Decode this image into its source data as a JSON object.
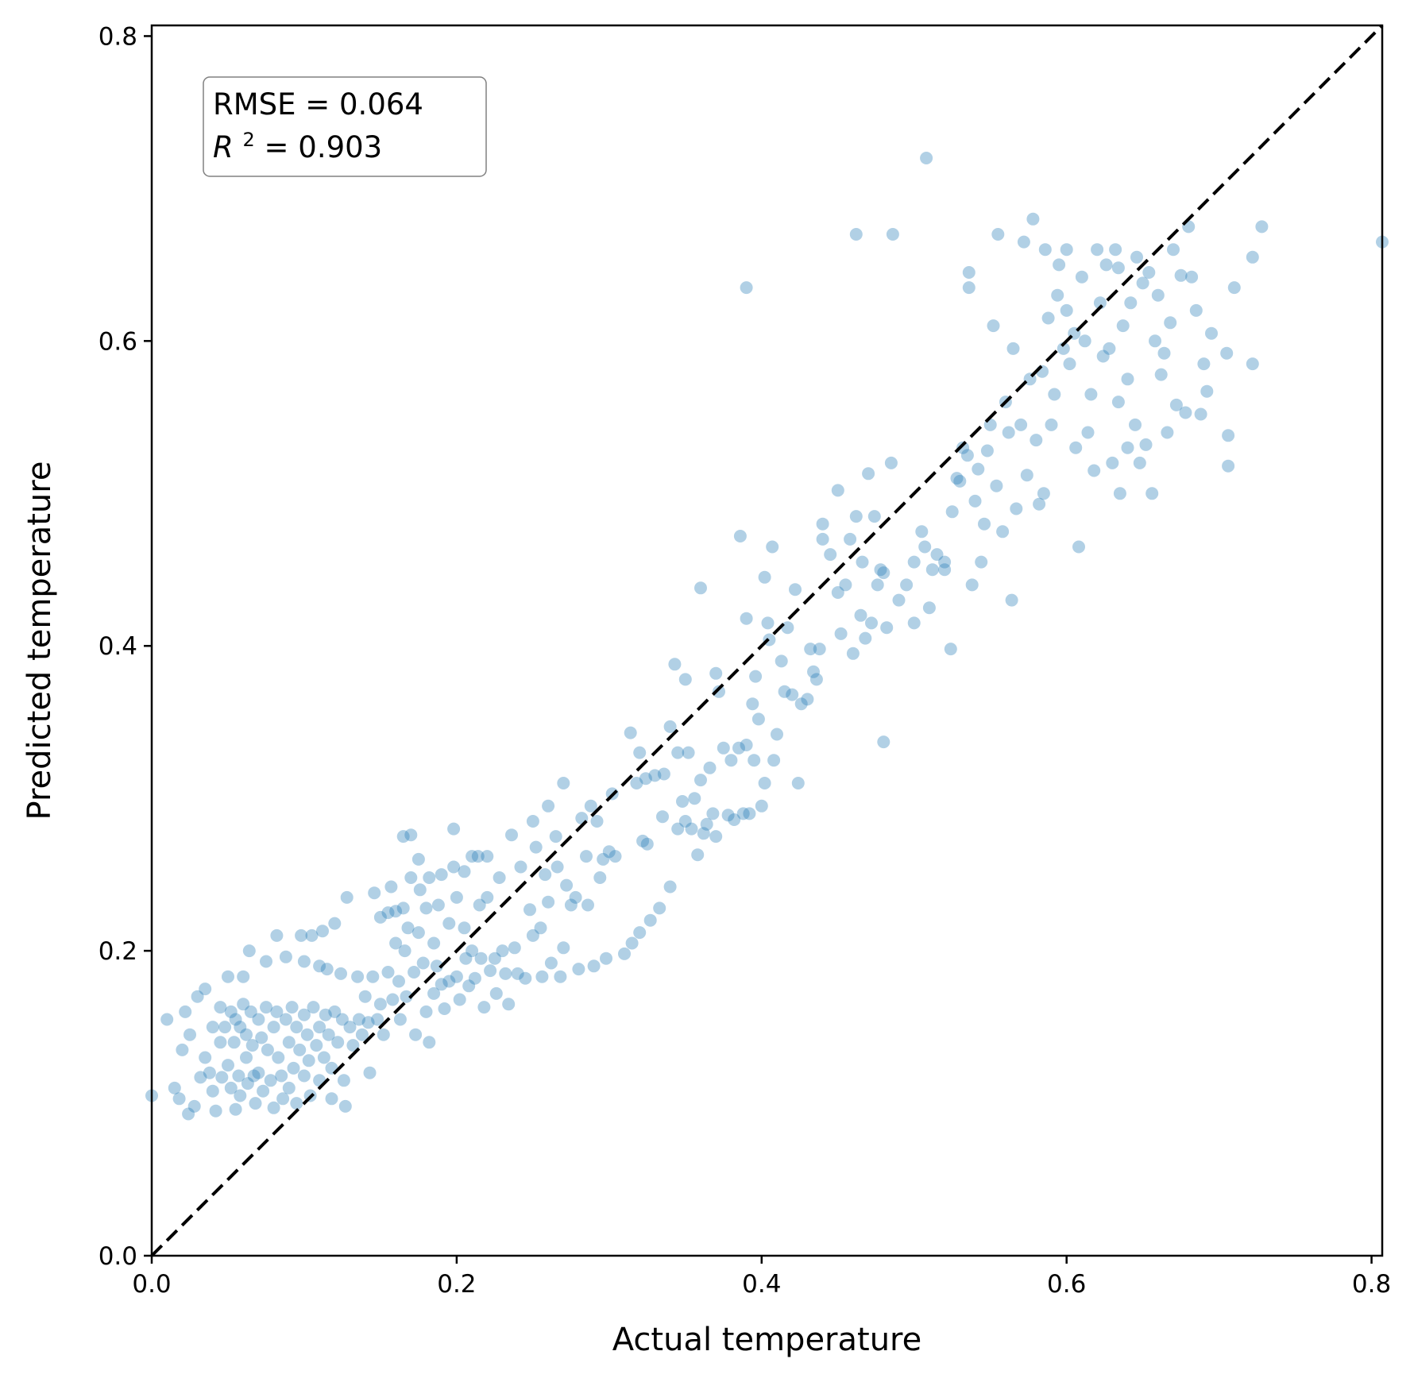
{
  "chart_data": {
    "type": "scatter",
    "xlabel": "Actual temperature",
    "ylabel": "Predicted temperature",
    "xlim": [
      0.0,
      0.807
    ],
    "ylim": [
      0.0,
      0.807
    ],
    "x_ticks": [
      "0.0",
      "0.2",
      "0.4",
      "0.6",
      "0.8"
    ],
    "y_ticks": [
      "0.0",
      "0.2",
      "0.4",
      "0.6",
      "0.8"
    ],
    "annotation": {
      "rmse": "RMSE = 0.064",
      "r2_symbol": "R",
      "r2_exp": "2",
      "r2_value": " = 0.903"
    },
    "reference_line": {
      "style": "dashed",
      "color": "#000000",
      "from": [
        0,
        0
      ],
      "to": [
        0.807,
        0.807
      ]
    },
    "point_color": "#1f77b4",
    "point_alpha": 0.35,
    "grid": false,
    "points": [
      [
        0.0,
        0.105
      ],
      [
        0.01,
        0.155
      ],
      [
        0.015,
        0.11
      ],
      [
        0.018,
        0.103
      ],
      [
        0.02,
        0.135
      ],
      [
        0.022,
        0.16
      ],
      [
        0.024,
        0.093
      ],
      [
        0.025,
        0.145
      ],
      [
        0.028,
        0.098
      ],
      [
        0.03,
        0.17
      ],
      [
        0.032,
        0.117
      ],
      [
        0.035,
        0.175
      ],
      [
        0.035,
        0.13
      ],
      [
        0.038,
        0.12
      ],
      [
        0.04,
        0.15
      ],
      [
        0.04,
        0.108
      ],
      [
        0.042,
        0.095
      ],
      [
        0.045,
        0.163
      ],
      [
        0.045,
        0.14
      ],
      [
        0.046,
        0.117
      ],
      [
        0.048,
        0.15
      ],
      [
        0.05,
        0.183
      ],
      [
        0.05,
        0.125
      ],
      [
        0.052,
        0.16
      ],
      [
        0.052,
        0.11
      ],
      [
        0.054,
        0.14
      ],
      [
        0.055,
        0.155
      ],
      [
        0.055,
        0.096
      ],
      [
        0.057,
        0.118
      ],
      [
        0.058,
        0.15
      ],
      [
        0.058,
        0.105
      ],
      [
        0.06,
        0.183
      ],
      [
        0.06,
        0.165
      ],
      [
        0.062,
        0.145
      ],
      [
        0.062,
        0.13
      ],
      [
        0.063,
        0.113
      ],
      [
        0.064,
        0.2
      ],
      [
        0.065,
        0.16
      ],
      [
        0.066,
        0.138
      ],
      [
        0.067,
        0.118
      ],
      [
        0.068,
        0.1
      ],
      [
        0.07,
        0.155
      ],
      [
        0.07,
        0.12
      ],
      [
        0.072,
        0.143
      ],
      [
        0.073,
        0.108
      ],
      [
        0.075,
        0.193
      ],
      [
        0.075,
        0.163
      ],
      [
        0.076,
        0.135
      ],
      [
        0.078,
        0.115
      ],
      [
        0.08,
        0.15
      ],
      [
        0.08,
        0.097
      ],
      [
        0.082,
        0.21
      ],
      [
        0.082,
        0.16
      ],
      [
        0.083,
        0.13
      ],
      [
        0.085,
        0.118
      ],
      [
        0.086,
        0.103
      ],
      [
        0.088,
        0.196
      ],
      [
        0.088,
        0.155
      ],
      [
        0.09,
        0.14
      ],
      [
        0.09,
        0.11
      ],
      [
        0.092,
        0.163
      ],
      [
        0.093,
        0.123
      ],
      [
        0.095,
        0.15
      ],
      [
        0.095,
        0.1
      ],
      [
        0.097,
        0.135
      ],
      [
        0.098,
        0.21
      ],
      [
        0.1,
        0.193
      ],
      [
        0.1,
        0.158
      ],
      [
        0.1,
        0.118
      ],
      [
        0.102,
        0.145
      ],
      [
        0.103,
        0.128
      ],
      [
        0.104,
        0.105
      ],
      [
        0.105,
        0.21
      ],
      [
        0.106,
        0.163
      ],
      [
        0.108,
        0.138
      ],
      [
        0.11,
        0.19
      ],
      [
        0.11,
        0.15
      ],
      [
        0.11,
        0.115
      ],
      [
        0.112,
        0.213
      ],
      [
        0.113,
        0.13
      ],
      [
        0.114,
        0.158
      ],
      [
        0.115,
        0.188
      ],
      [
        0.116,
        0.145
      ],
      [
        0.118,
        0.123
      ],
      [
        0.118,
        0.103
      ],
      [
        0.12,
        0.218
      ],
      [
        0.12,
        0.16
      ],
      [
        0.122,
        0.14
      ],
      [
        0.124,
        0.185
      ],
      [
        0.125,
        0.155
      ],
      [
        0.126,
        0.115
      ],
      [
        0.127,
        0.098
      ],
      [
        0.128,
        0.235
      ],
      [
        0.13,
        0.15
      ],
      [
        0.132,
        0.138
      ],
      [
        0.135,
        0.183
      ],
      [
        0.136,
        0.155
      ],
      [
        0.138,
        0.145
      ],
      [
        0.14,
        0.17
      ],
      [
        0.142,
        0.153
      ],
      [
        0.143,
        0.12
      ],
      [
        0.145,
        0.183
      ],
      [
        0.146,
        0.238
      ],
      [
        0.148,
        0.155
      ],
      [
        0.15,
        0.165
      ],
      [
        0.15,
        0.222
      ],
      [
        0.152,
        0.145
      ],
      [
        0.155,
        0.186
      ],
      [
        0.155,
        0.225
      ],
      [
        0.157,
        0.242
      ],
      [
        0.158,
        0.168
      ],
      [
        0.16,
        0.226
      ],
      [
        0.16,
        0.205
      ],
      [
        0.162,
        0.18
      ],
      [
        0.163,
        0.155
      ],
      [
        0.165,
        0.228
      ],
      [
        0.165,
        0.275
      ],
      [
        0.166,
        0.2
      ],
      [
        0.167,
        0.17
      ],
      [
        0.168,
        0.215
      ],
      [
        0.17,
        0.248
      ],
      [
        0.17,
        0.276
      ],
      [
        0.172,
        0.186
      ],
      [
        0.173,
        0.145
      ],
      [
        0.175,
        0.26
      ],
      [
        0.175,
        0.212
      ],
      [
        0.176,
        0.24
      ],
      [
        0.178,
        0.192
      ],
      [
        0.18,
        0.228
      ],
      [
        0.18,
        0.16
      ],
      [
        0.182,
        0.248
      ],
      [
        0.182,
        0.14
      ],
      [
        0.185,
        0.205
      ],
      [
        0.185,
        0.172
      ],
      [
        0.187,
        0.19
      ],
      [
        0.188,
        0.23
      ],
      [
        0.19,
        0.25
      ],
      [
        0.19,
        0.178
      ],
      [
        0.192,
        0.162
      ],
      [
        0.195,
        0.218
      ],
      [
        0.195,
        0.18
      ],
      [
        0.198,
        0.28
      ],
      [
        0.198,
        0.255
      ],
      [
        0.2,
        0.235
      ],
      [
        0.2,
        0.183
      ],
      [
        0.202,
        0.168
      ],
      [
        0.205,
        0.252
      ],
      [
        0.205,
        0.215
      ],
      [
        0.206,
        0.195
      ],
      [
        0.208,
        0.177
      ],
      [
        0.21,
        0.262
      ],
      [
        0.21,
        0.2
      ],
      [
        0.212,
        0.182
      ],
      [
        0.214,
        0.262
      ],
      [
        0.215,
        0.23
      ],
      [
        0.216,
        0.195
      ],
      [
        0.218,
        0.163
      ],
      [
        0.22,
        0.262
      ],
      [
        0.22,
        0.235
      ],
      [
        0.222,
        0.187
      ],
      [
        0.225,
        0.195
      ],
      [
        0.226,
        0.172
      ],
      [
        0.228,
        0.248
      ],
      [
        0.23,
        0.2
      ],
      [
        0.232,
        0.185
      ],
      [
        0.234,
        0.165
      ],
      [
        0.236,
        0.276
      ],
      [
        0.238,
        0.202
      ],
      [
        0.24,
        0.185
      ],
      [
        0.242,
        0.255
      ],
      [
        0.245,
        0.182
      ],
      [
        0.248,
        0.227
      ],
      [
        0.25,
        0.21
      ],
      [
        0.25,
        0.285
      ],
      [
        0.252,
        0.268
      ],
      [
        0.255,
        0.215
      ],
      [
        0.256,
        0.183
      ],
      [
        0.258,
        0.25
      ],
      [
        0.26,
        0.295
      ],
      [
        0.26,
        0.232
      ],
      [
        0.262,
        0.192
      ],
      [
        0.265,
        0.275
      ],
      [
        0.266,
        0.255
      ],
      [
        0.268,
        0.183
      ],
      [
        0.27,
        0.31
      ],
      [
        0.27,
        0.202
      ],
      [
        0.272,
        0.243
      ],
      [
        0.275,
        0.23
      ],
      [
        0.278,
        0.235
      ],
      [
        0.28,
        0.188
      ],
      [
        0.282,
        0.287
      ],
      [
        0.285,
        0.262
      ],
      [
        0.286,
        0.23
      ],
      [
        0.288,
        0.295
      ],
      [
        0.29,
        0.19
      ],
      [
        0.292,
        0.285
      ],
      [
        0.294,
        0.248
      ],
      [
        0.296,
        0.26
      ],
      [
        0.298,
        0.195
      ],
      [
        0.3,
        0.265
      ],
      [
        0.302,
        0.303
      ],
      [
        0.304,
        0.262
      ],
      [
        0.31,
        0.198
      ],
      [
        0.314,
        0.343
      ],
      [
        0.315,
        0.205
      ],
      [
        0.318,
        0.31
      ],
      [
        0.32,
        0.33
      ],
      [
        0.32,
        0.212
      ],
      [
        0.322,
        0.272
      ],
      [
        0.324,
        0.313
      ],
      [
        0.325,
        0.27
      ],
      [
        0.327,
        0.22
      ],
      [
        0.33,
        0.315
      ],
      [
        0.333,
        0.228
      ],
      [
        0.335,
        0.288
      ],
      [
        0.336,
        0.316
      ],
      [
        0.34,
        0.347
      ],
      [
        0.34,
        0.242
      ],
      [
        0.343,
        0.388
      ],
      [
        0.345,
        0.28
      ],
      [
        0.345,
        0.33
      ],
      [
        0.348,
        0.298
      ],
      [
        0.35,
        0.378
      ],
      [
        0.35,
        0.285
      ],
      [
        0.352,
        0.33
      ],
      [
        0.354,
        0.28
      ],
      [
        0.356,
        0.3
      ],
      [
        0.358,
        0.263
      ],
      [
        0.36,
        0.438
      ],
      [
        0.36,
        0.312
      ],
      [
        0.362,
        0.277
      ],
      [
        0.364,
        0.283
      ],
      [
        0.366,
        0.32
      ],
      [
        0.368,
        0.29
      ],
      [
        0.37,
        0.382
      ],
      [
        0.37,
        0.275
      ],
      [
        0.372,
        0.37
      ],
      [
        0.375,
        0.333
      ],
      [
        0.378,
        0.289
      ],
      [
        0.38,
        0.325
      ],
      [
        0.382,
        0.286
      ],
      [
        0.385,
        0.333
      ],
      [
        0.386,
        0.472
      ],
      [
        0.388,
        0.29
      ],
      [
        0.39,
        0.418
      ],
      [
        0.39,
        0.335
      ],
      [
        0.39,
        0.635
      ],
      [
        0.392,
        0.29
      ],
      [
        0.394,
        0.362
      ],
      [
        0.395,
        0.325
      ],
      [
        0.396,
        0.38
      ],
      [
        0.398,
        0.352
      ],
      [
        0.4,
        0.295
      ],
      [
        0.402,
        0.31
      ],
      [
        0.402,
        0.445
      ],
      [
        0.404,
        0.415
      ],
      [
        0.405,
        0.404
      ],
      [
        0.407,
        0.465
      ],
      [
        0.408,
        0.325
      ],
      [
        0.41,
        0.342
      ],
      [
        0.413,
        0.39
      ],
      [
        0.415,
        0.37
      ],
      [
        0.417,
        0.412
      ],
      [
        0.42,
        0.368
      ],
      [
        0.422,
        0.437
      ],
      [
        0.424,
        0.31
      ],
      [
        0.426,
        0.362
      ],
      [
        0.43,
        0.365
      ],
      [
        0.432,
        0.398
      ],
      [
        0.434,
        0.383
      ],
      [
        0.436,
        0.378
      ],
      [
        0.438,
        0.398
      ],
      [
        0.44,
        0.48
      ],
      [
        0.44,
        0.47
      ],
      [
        0.445,
        0.46
      ],
      [
        0.45,
        0.435
      ],
      [
        0.45,
        0.502
      ],
      [
        0.452,
        0.408
      ],
      [
        0.455,
        0.44
      ],
      [
        0.458,
        0.47
      ],
      [
        0.46,
        0.395
      ],
      [
        0.462,
        0.485
      ],
      [
        0.462,
        0.67
      ],
      [
        0.465,
        0.42
      ],
      [
        0.466,
        0.455
      ],
      [
        0.468,
        0.405
      ],
      [
        0.47,
        0.513
      ],
      [
        0.472,
        0.415
      ],
      [
        0.474,
        0.485
      ],
      [
        0.476,
        0.44
      ],
      [
        0.478,
        0.45
      ],
      [
        0.48,
        0.337
      ],
      [
        0.48,
        0.448
      ],
      [
        0.482,
        0.412
      ],
      [
        0.485,
        0.52
      ],
      [
        0.486,
        0.67
      ],
      [
        0.49,
        0.43
      ],
      [
        0.495,
        0.44
      ],
      [
        0.5,
        0.455
      ],
      [
        0.5,
        0.415
      ],
      [
        0.505,
        0.475
      ],
      [
        0.507,
        0.465
      ],
      [
        0.508,
        0.72
      ],
      [
        0.51,
        0.425
      ],
      [
        0.512,
        0.45
      ],
      [
        0.515,
        0.46
      ],
      [
        0.52,
        0.455
      ],
      [
        0.52,
        0.45
      ],
      [
        0.524,
        0.398
      ],
      [
        0.525,
        0.488
      ],
      [
        0.528,
        0.51
      ],
      [
        0.53,
        0.508
      ],
      [
        0.532,
        0.53
      ],
      [
        0.535,
        0.525
      ],
      [
        0.536,
        0.635
      ],
      [
        0.536,
        0.645
      ],
      [
        0.538,
        0.44
      ],
      [
        0.54,
        0.495
      ],
      [
        0.542,
        0.516
      ],
      [
        0.544,
        0.455
      ],
      [
        0.546,
        0.48
      ],
      [
        0.548,
        0.528
      ],
      [
        0.55,
        0.545
      ],
      [
        0.552,
        0.61
      ],
      [
        0.554,
        0.505
      ],
      [
        0.555,
        0.67
      ],
      [
        0.558,
        0.475
      ],
      [
        0.56,
        0.56
      ],
      [
        0.562,
        0.54
      ],
      [
        0.564,
        0.43
      ],
      [
        0.565,
        0.595
      ],
      [
        0.567,
        0.49
      ],
      [
        0.57,
        0.545
      ],
      [
        0.572,
        0.665
      ],
      [
        0.574,
        0.512
      ],
      [
        0.576,
        0.575
      ],
      [
        0.578,
        0.68
      ],
      [
        0.58,
        0.535
      ],
      [
        0.582,
        0.493
      ],
      [
        0.584,
        0.58
      ],
      [
        0.585,
        0.5
      ],
      [
        0.586,
        0.66
      ],
      [
        0.588,
        0.615
      ],
      [
        0.59,
        0.545
      ],
      [
        0.592,
        0.565
      ],
      [
        0.594,
        0.63
      ],
      [
        0.595,
        0.65
      ],
      [
        0.598,
        0.595
      ],
      [
        0.6,
        0.66
      ],
      [
        0.6,
        0.62
      ],
      [
        0.602,
        0.585
      ],
      [
        0.605,
        0.605
      ],
      [
        0.606,
        0.53
      ],
      [
        0.608,
        0.465
      ],
      [
        0.61,
        0.642
      ],
      [
        0.612,
        0.6
      ],
      [
        0.614,
        0.54
      ],
      [
        0.616,
        0.565
      ],
      [
        0.618,
        0.515
      ],
      [
        0.62,
        0.66
      ],
      [
        0.622,
        0.625
      ],
      [
        0.624,
        0.59
      ],
      [
        0.626,
        0.65
      ],
      [
        0.628,
        0.595
      ],
      [
        0.63,
        0.52
      ],
      [
        0.632,
        0.66
      ],
      [
        0.634,
        0.648
      ],
      [
        0.634,
        0.56
      ],
      [
        0.635,
        0.5
      ],
      [
        0.637,
        0.61
      ],
      [
        0.64,
        0.575
      ],
      [
        0.64,
        0.53
      ],
      [
        0.642,
        0.625
      ],
      [
        0.645,
        0.545
      ],
      [
        0.646,
        0.655
      ],
      [
        0.648,
        0.52
      ],
      [
        0.65,
        0.638
      ],
      [
        0.652,
        0.532
      ],
      [
        0.654,
        0.645
      ],
      [
        0.656,
        0.5
      ],
      [
        0.658,
        0.6
      ],
      [
        0.66,
        0.63
      ],
      [
        0.662,
        0.578
      ],
      [
        0.664,
        0.592
      ],
      [
        0.666,
        0.54
      ],
      [
        0.668,
        0.612
      ],
      [
        0.67,
        0.66
      ],
      [
        0.672,
        0.558
      ],
      [
        0.675,
        0.643
      ],
      [
        0.678,
        0.553
      ],
      [
        0.68,
        0.675
      ],
      [
        0.682,
        0.642
      ],
      [
        0.685,
        0.62
      ],
      [
        0.688,
        0.552
      ],
      [
        0.69,
        0.585
      ],
      [
        0.692,
        0.567
      ],
      [
        0.695,
        0.605
      ],
      [
        0.705,
        0.592
      ],
      [
        0.706,
        0.538
      ],
      [
        0.706,
        0.518
      ],
      [
        0.71,
        0.635
      ],
      [
        0.722,
        0.655
      ],
      [
        0.722,
        0.585
      ],
      [
        0.728,
        0.675
      ],
      [
        0.807,
        0.665
      ]
    ]
  }
}
